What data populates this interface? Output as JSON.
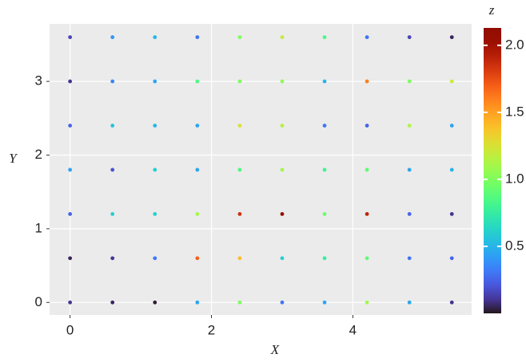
{
  "chart_data": {
    "type": "scatter",
    "x_label": "X",
    "y_label": "Y",
    "color_label": "z",
    "colorscale": "turbo",
    "grid": true,
    "x": [
      0,
      0.6,
      1.2,
      1.8,
      2.4,
      3,
      3.6,
      4.2,
      4.8,
      5.4,
      0,
      0.6,
      1.2,
      1.8,
      2.4,
      3,
      3.6,
      4.2,
      4.8,
      5.4,
      0,
      0.6,
      1.2,
      1.8,
      2.4,
      3,
      3.6,
      4.2,
      4.8,
      5.4,
      0,
      0.6,
      1.2,
      1.8,
      2.4,
      3,
      3.6,
      4.2,
      4.8,
      5.4,
      0,
      0.6,
      1.2,
      1.8,
      2.4,
      3,
      3.6,
      4.2,
      4.8,
      5.4,
      0,
      0.6,
      1.2,
      1.8,
      2.4,
      3,
      3.6,
      4.2,
      4.8,
      5.4,
      0,
      0.6,
      1.2,
      1.8,
      2.4,
      3,
      3.6,
      4.2,
      4.8,
      5.4
    ],
    "y": [
      0,
      0,
      0,
      0,
      0,
      0,
      0,
      0,
      0,
      0,
      0.6,
      0.6,
      0.6,
      0.6,
      0.6,
      0.6,
      0.6,
      0.6,
      0.6,
      0.6,
      1.2,
      1.2,
      1.2,
      1.2,
      1.2,
      1.2,
      1.2,
      1.2,
      1.2,
      1.2,
      1.8,
      1.8,
      1.8,
      1.8,
      1.8,
      1.8,
      1.8,
      1.8,
      1.8,
      1.8,
      2.4,
      2.4,
      2.4,
      2.4,
      2.4,
      2.4,
      2.4,
      2.4,
      2.4,
      2.4,
      3,
      3,
      3,
      3,
      3,
      3,
      3,
      3,
      3,
      3,
      3.6,
      3.6,
      3.6,
      3.6,
      3.6,
      3.6,
      3.6,
      3.6,
      3.6,
      3.6
    ],
    "z": [
      0.1,
      0.05,
      0.02,
      0.45,
      1.0,
      0.3,
      0.45,
      1.1,
      0.45,
      0.1,
      0.05,
      0.1,
      0.3,
      1.7,
      1.4,
      0.6,
      0.75,
      0.9,
      0.3,
      0.25,
      0.25,
      0.6,
      0.6,
      1.1,
      1.85,
      2.05,
      0.95,
      1.9,
      0.25,
      0.1,
      0.45,
      0.2,
      0.6,
      0.45,
      0.85,
      1.1,
      0.8,
      0.9,
      0.45,
      0.5,
      0.25,
      0.55,
      0.5,
      0.45,
      1.25,
      1.15,
      0.3,
      0.25,
      1.15,
      0.45,
      0.1,
      0.35,
      0.45,
      0.85,
      1.0,
      1.05,
      0.5,
      1.6,
      1.0,
      1.2,
      0.15,
      0.4,
      0.5,
      0.3,
      1.0,
      1.2,
      0.85,
      0.3,
      0.15,
      0.05
    ],
    "xlim": [
      -0.29,
      5.68
    ],
    "ylim": [
      -0.17,
      3.78
    ],
    "zlim": [
      0,
      2.13
    ],
    "xticks": [
      0,
      2,
      4
    ],
    "yticks": [
      0,
      1,
      2,
      3
    ],
    "zticks": [
      0.5,
      {
        "value": 1,
        "label": "1.0"
      },
      1.5,
      {
        "value": 2,
        "label": "2.0"
      }
    ]
  }
}
